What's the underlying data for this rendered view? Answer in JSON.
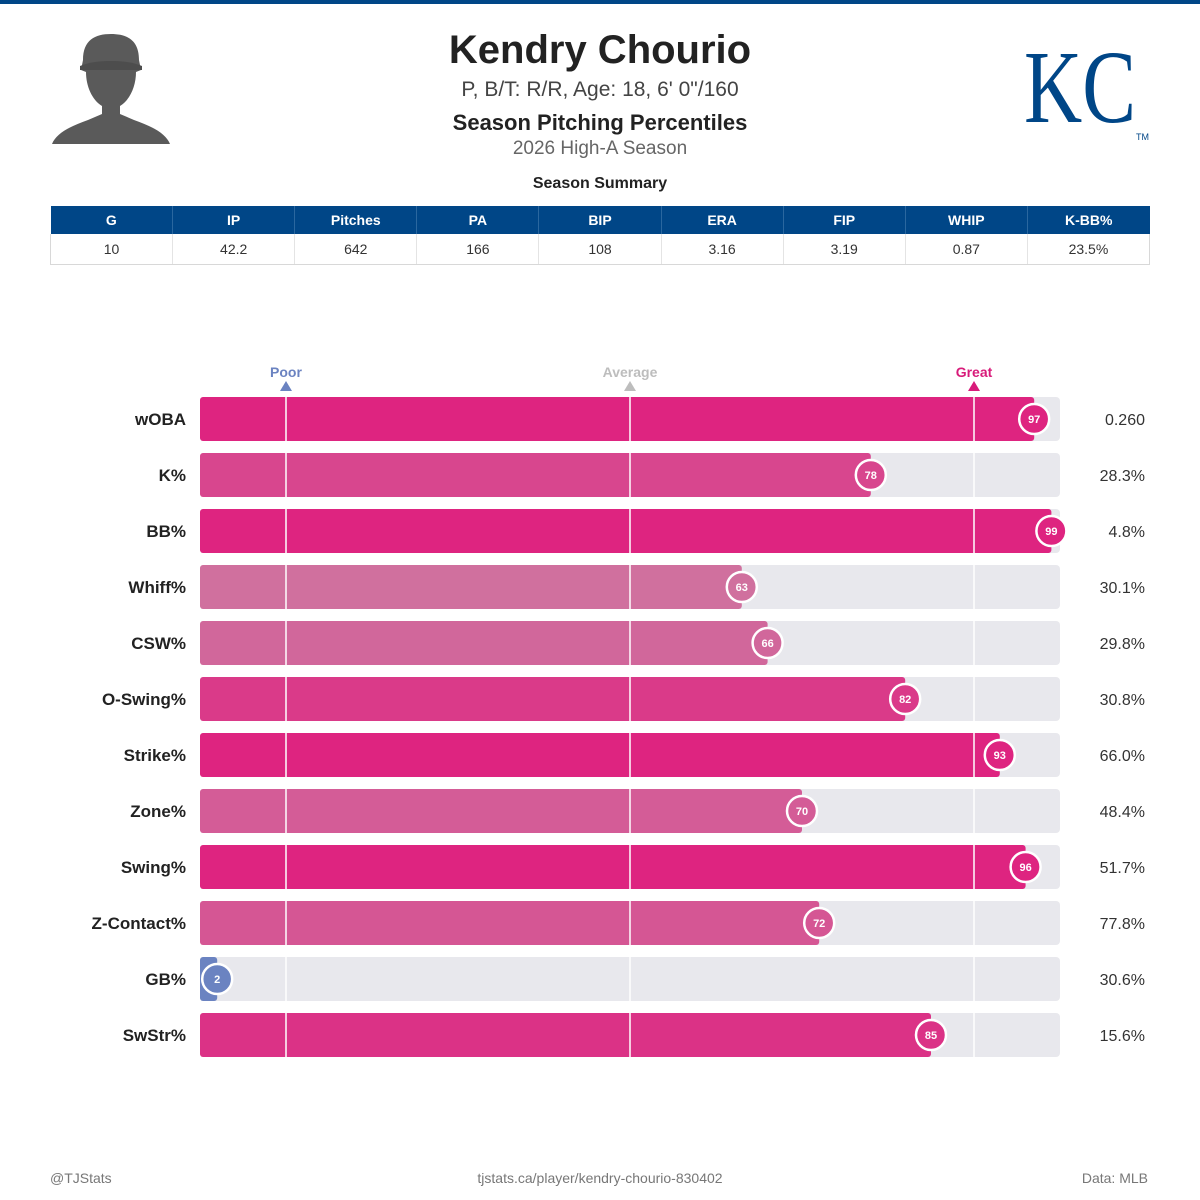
{
  "header": {
    "player_name": "Kendry Chourio",
    "bio": "P, B/T: R/R, Age: 18, 6' 0\"/160",
    "title": "Season Pitching Percentiles",
    "subtitle": "2026 High-A Season"
  },
  "logo": {
    "text": "KC",
    "trademark": "TM"
  },
  "summary": {
    "title": "Season Summary",
    "columns": [
      "G",
      "IP",
      "Pitches",
      "PA",
      "BIP",
      "ERA",
      "FIP",
      "WHIP",
      "K-BB%"
    ],
    "values": [
      "10",
      "42.2",
      "642",
      "166",
      "108",
      "3.16",
      "3.19",
      "0.87",
      "23.5%"
    ]
  },
  "chart_data": {
    "type": "bar",
    "orientation": "horizontal",
    "xlim": [
      0,
      100
    ],
    "scale_markers": [
      {
        "label": "Poor",
        "position": 10,
        "color": "#6b83c1"
      },
      {
        "label": "Average",
        "position": 50,
        "color": "#bdbdbd"
      },
      {
        "label": "Great",
        "position": 90,
        "color": "#d81b7a"
      }
    ],
    "rows": [
      {
        "metric": "wOBA",
        "percentile": 97,
        "value": "0.260"
      },
      {
        "metric": "K%",
        "percentile": 78,
        "value": "28.3%"
      },
      {
        "metric": "BB%",
        "percentile": 99,
        "value": "4.8%"
      },
      {
        "metric": "Whiff%",
        "percentile": 63,
        "value": "30.1%"
      },
      {
        "metric": "CSW%",
        "percentile": 66,
        "value": "29.8%"
      },
      {
        "metric": "O-Swing%",
        "percentile": 82,
        "value": "30.8%"
      },
      {
        "metric": "Strike%",
        "percentile": 93,
        "value": "66.0%"
      },
      {
        "metric": "Zone%",
        "percentile": 70,
        "value": "48.4%"
      },
      {
        "metric": "Swing%",
        "percentile": 96,
        "value": "51.7%"
      },
      {
        "metric": "Z-Contact%",
        "percentile": 72,
        "value": "77.8%"
      },
      {
        "metric": "GB%",
        "percentile": 2,
        "value": "30.6%"
      },
      {
        "metric": "SwStr%",
        "percentile": 85,
        "value": "15.6%"
      }
    ]
  },
  "colors": {
    "primary": "#004687",
    "great": "#de2480",
    "poor": "#6b83c1",
    "track": "#e8e8ed"
  },
  "footer": {
    "left": "@TJStats",
    "center": "tjstats.ca/player/kendry-chourio-830402",
    "right": "Data: MLB"
  }
}
